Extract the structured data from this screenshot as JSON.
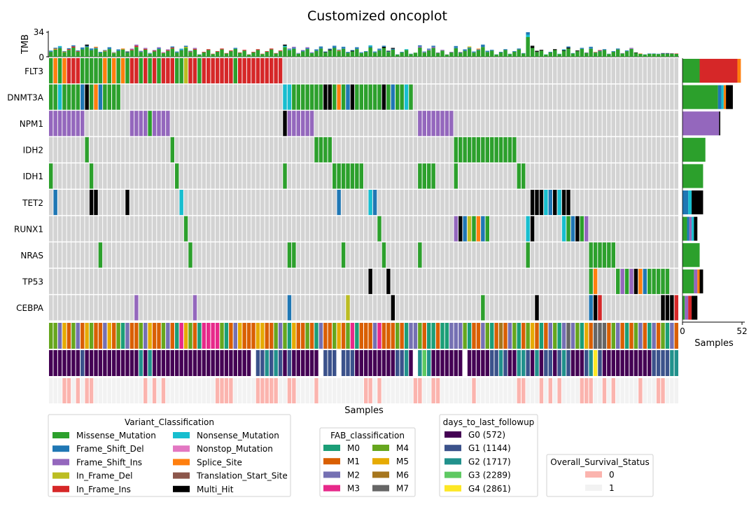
{
  "chart_data": {
    "type": "heatmap",
    "title": "Customized oncoplot",
    "xlabel": "Samples",
    "tmb": {
      "label": "TMB",
      "ticks": [
        0,
        34
      ],
      "ylim": [
        0,
        34
      ]
    },
    "side_bar": {
      "xlabel": "Samples",
      "ticks": [
        0,
        52
      ],
      "xlim": [
        0,
        52
      ]
    },
    "genes": [
      "FLT3",
      "DNMT3A",
      "NPM1",
      "IDH2",
      "IDH1",
      "TET2",
      "RUNX1",
      "NRAS",
      "TP53",
      "CEBPA"
    ],
    "variant_colors": {
      "Missense_Mutation": "#2ca02c",
      "Frame_Shift_Del": "#1f77b4",
      "Frame_Shift_Ins": "#9467bd",
      "In_Frame_Del": "#bcbd22",
      "In_Frame_Ins": "#d62728",
      "Nonsense_Mutation": "#17becf",
      "Nonstop_Mutation": "#e377c2",
      "Splice_Site": "#ff7f0e",
      "Translation_Start_Site": "#8c564b",
      "Multi_Hit": "#000000",
      "none": "#d3d3d3"
    },
    "segments": {
      "FLT3": [
        [
          0,
          0,
          "M"
        ],
        [
          1,
          1,
          "S"
        ],
        [
          2,
          2,
          "M"
        ],
        [
          3,
          3,
          "S"
        ],
        [
          4,
          6,
          "I"
        ],
        [
          7,
          11,
          "M"
        ],
        [
          12,
          12,
          "S"
        ],
        [
          13,
          13,
          "M"
        ],
        [
          14,
          14,
          "S"
        ],
        [
          15,
          15,
          "M"
        ],
        [
          16,
          16,
          "S"
        ],
        [
          17,
          17,
          "M"
        ],
        [
          18,
          19,
          "I"
        ],
        [
          20,
          20,
          "M"
        ],
        [
          21,
          21,
          "I"
        ],
        [
          22,
          22,
          "M"
        ],
        [
          23,
          23,
          "I"
        ],
        [
          24,
          24,
          "M"
        ],
        [
          25,
          27,
          "I"
        ],
        [
          28,
          29,
          "M"
        ],
        [
          30,
          30,
          "D2"
        ],
        [
          31,
          32,
          "I"
        ],
        [
          33,
          33,
          "M"
        ],
        [
          34,
          34,
          "I"
        ],
        [
          35,
          40,
          "I"
        ],
        [
          41,
          41,
          "M"
        ],
        [
          42,
          51,
          "I"
        ]
      ],
      "DNMT3A": [
        [
          0,
          1,
          "M"
        ],
        [
          2,
          2,
          "MN"
        ],
        [
          3,
          6,
          "M"
        ],
        [
          7,
          7,
          "F"
        ],
        [
          8,
          8,
          "X"
        ],
        [
          9,
          9,
          "M"
        ],
        [
          10,
          10,
          "S"
        ],
        [
          11,
          11,
          "F"
        ],
        [
          12,
          13,
          "M"
        ],
        [
          14,
          15,
          "M"
        ],
        [
          52,
          53,
          "MN"
        ],
        [
          54,
          55,
          "M"
        ],
        [
          56,
          60,
          "M"
        ],
        [
          61,
          62,
          "X"
        ],
        [
          63,
          63,
          "M"
        ],
        [
          64,
          64,
          "S"
        ],
        [
          65,
          65,
          "M"
        ],
        [
          66,
          66,
          "F"
        ],
        [
          67,
          67,
          "X"
        ],
        [
          68,
          73,
          "M"
        ],
        [
          74,
          74,
          "X"
        ],
        [
          75,
          75,
          "M"
        ],
        [
          76,
          76,
          "F"
        ],
        [
          77,
          78,
          "M"
        ],
        [
          79,
          79,
          "MN"
        ],
        [
          80,
          80,
          "M"
        ]
      ],
      "NPM1": [
        [
          0,
          7,
          "FI"
        ],
        [
          18,
          21,
          "FI"
        ],
        [
          22,
          22,
          "M"
        ],
        [
          23,
          26,
          "FI"
        ],
        [
          52,
          52,
          "X"
        ],
        [
          53,
          58,
          "FI"
        ],
        [
          82,
          89,
          "FI"
        ]
      ],
      "IDH2": [
        [
          8,
          8,
          "M"
        ],
        [
          27,
          27,
          "M"
        ],
        [
          59,
          62,
          "M"
        ],
        [
          90,
          103,
          "M"
        ]
      ],
      "IDH1": [
        [
          0,
          0,
          "M"
        ],
        [
          9,
          9,
          "M"
        ],
        [
          28,
          28,
          "M"
        ],
        [
          52,
          52,
          "M"
        ],
        [
          63,
          69,
          "M"
        ],
        [
          82,
          85,
          "M"
        ],
        [
          90,
          90,
          "M"
        ],
        [
          104,
          105,
          "M"
        ]
      ],
      "TET2": [
        [
          1,
          1,
          "F"
        ],
        [
          9,
          9,
          "X"
        ],
        [
          10,
          10,
          "X"
        ],
        [
          17,
          17,
          "X"
        ],
        [
          29,
          29,
          "N"
        ],
        [
          64,
          64,
          "F"
        ],
        [
          71,
          71,
          "N"
        ],
        [
          72,
          72,
          "F"
        ],
        [
          107,
          109,
          "X"
        ],
        [
          110,
          110,
          "N"
        ],
        [
          111,
          111,
          "F"
        ],
        [
          112,
          112,
          "X"
        ],
        [
          113,
          113,
          "N"
        ],
        [
          114,
          114,
          "X"
        ],
        [
          115,
          115,
          "X"
        ]
      ],
      "RUNX1": [
        [
          30,
          30,
          "M"
        ],
        [
          73,
          73,
          "M"
        ],
        [
          90,
          90,
          "FI"
        ],
        [
          91,
          91,
          "X"
        ],
        [
          92,
          92,
          "F"
        ],
        [
          93,
          93,
          "DD"
        ],
        [
          94,
          94,
          "M"
        ],
        [
          95,
          95,
          "S"
        ],
        [
          96,
          96,
          "F"
        ],
        [
          97,
          97,
          "M"
        ],
        [
          106,
          106,
          "N"
        ],
        [
          107,
          107,
          "X"
        ],
        [
          114,
          114,
          "N"
        ],
        [
          115,
          115,
          "M"
        ],
        [
          116,
          116,
          "F"
        ],
        [
          117,
          117,
          "X"
        ],
        [
          118,
          118,
          "M"
        ],
        [
          119,
          119,
          "FI"
        ]
      ],
      "NRAS": [
        [
          11,
          11,
          "M"
        ],
        [
          31,
          31,
          "M"
        ],
        [
          53,
          54,
          "M"
        ],
        [
          65,
          65,
          "M"
        ],
        [
          74,
          74,
          "M"
        ],
        [
          82,
          82,
          "M"
        ],
        [
          106,
          106,
          "M"
        ],
        [
          120,
          125,
          "M"
        ]
      ],
      "TP53": [
        [
          71,
          71,
          "X"
        ],
        [
          75,
          75,
          "X"
        ],
        [
          120,
          120,
          "M"
        ],
        [
          121,
          121,
          "S"
        ],
        [
          126,
          126,
          "M"
        ],
        [
          127,
          127,
          "FI"
        ],
        [
          128,
          128,
          "M"
        ],
        [
          129,
          129,
          "FI"
        ],
        [
          130,
          130,
          "X"
        ],
        [
          131,
          131,
          "S"
        ],
        [
          132,
          132,
          "F"
        ],
        [
          133,
          137,
          "M"
        ]
      ],
      "CEBPA": [
        [
          19,
          19,
          "FI"
        ],
        [
          32,
          32,
          "FI"
        ],
        [
          53,
          53,
          "F"
        ],
        [
          66,
          66,
          "DD"
        ],
        [
          76,
          76,
          "X"
        ],
        [
          96,
          96,
          "M"
        ],
        [
          108,
          108,
          "X"
        ],
        [
          120,
          120,
          "F"
        ],
        [
          121,
          121,
          "X"
        ],
        [
          122,
          122,
          "I"
        ],
        [
          136,
          137,
          "X"
        ],
        [
          138,
          138,
          "X"
        ],
        [
          139,
          139,
          "I"
        ]
      ]
    },
    "side_counts": {
      "FLT3": [
        [
          "M",
          15
        ],
        [
          "I",
          33
        ],
        [
          "S",
          3
        ]
      ],
      "DNMT3A": [
        [
          "M",
          31
        ],
        [
          "F",
          3
        ],
        [
          "MN",
          2
        ],
        [
          "S",
          2
        ],
        [
          "X",
          6
        ]
      ],
      "NPM1": [
        [
          "FI",
          32
        ],
        [
          "X",
          1
        ]
      ],
      "IDH2": [
        [
          "M",
          20
        ]
      ],
      "IDH1": [
        [
          "M",
          18
        ]
      ],
      "TET2": [
        [
          "F",
          5
        ],
        [
          "N",
          3
        ],
        [
          "X",
          10
        ]
      ],
      "RUNX1": [
        [
          "M",
          4
        ],
        [
          "F",
          2
        ],
        [
          "FI",
          2
        ],
        [
          "N",
          2
        ],
        [
          "X",
          3
        ]
      ],
      "NRAS": [
        [
          "M",
          15
        ]
      ],
      "TP53": [
        [
          "M",
          10
        ],
        [
          "FI",
          3
        ],
        [
          "S",
          2
        ],
        [
          "X",
          3
        ]
      ],
      "CEBPA": [
        [
          "M",
          2
        ],
        [
          "FI",
          3
        ],
        [
          "I",
          3
        ],
        [
          "X",
          5
        ]
      ]
    },
    "legends": {
      "variant": {
        "title": "Variant_Classification",
        "items": [
          {
            "label": "Missense_Mutation",
            "color": "#2ca02c"
          },
          {
            "label": "Frame_Shift_Del",
            "color": "#1f77b4"
          },
          {
            "label": "Frame_Shift_Ins",
            "color": "#9467bd"
          },
          {
            "label": "In_Frame_Del",
            "color": "#bcbd22"
          },
          {
            "label": "In_Frame_Ins",
            "color": "#d62728"
          },
          {
            "label": "Nonsense_Mutation",
            "color": "#17becf"
          },
          {
            "label": "Nonstop_Mutation",
            "color": "#e377c2"
          },
          {
            "label": "Splice_Site",
            "color": "#ff7f0e"
          },
          {
            "label": "Translation_Start_Site",
            "color": "#8c564b"
          },
          {
            "label": "Multi_Hit",
            "color": "#000000"
          }
        ]
      },
      "fab": {
        "title": "FAB_classification",
        "items": [
          {
            "label": "M0",
            "color": "#1b9e77"
          },
          {
            "label": "M1",
            "color": "#d95f02"
          },
          {
            "label": "M2",
            "color": "#7570b3"
          },
          {
            "label": "M3",
            "color": "#e7298a"
          },
          {
            "label": "M4",
            "color": "#66a61e"
          },
          {
            "label": "M5",
            "color": "#e6ab02"
          },
          {
            "label": "M6",
            "color": "#a6761d"
          },
          {
            "label": "M7",
            "color": "#666666"
          }
        ]
      },
      "followup": {
        "title": "days_to_last_followup",
        "items": [
          {
            "label": "G0 (572)",
            "color": "#440154"
          },
          {
            "label": "G1 (1144)",
            "color": "#3b528b"
          },
          {
            "label": "G2 (1717)",
            "color": "#21918c"
          },
          {
            "label": "G3 (2289)",
            "color": "#5ec962"
          },
          {
            "label": "G4 (2861)",
            "color": "#fde725"
          }
        ]
      },
      "survival": {
        "title": "Overall_Survival_Status",
        "items": [
          {
            "label": "0",
            "color": "#fbb4ae"
          },
          {
            "label": "1",
            "color": "#f2f2f2"
          }
        ]
      }
    }
  }
}
